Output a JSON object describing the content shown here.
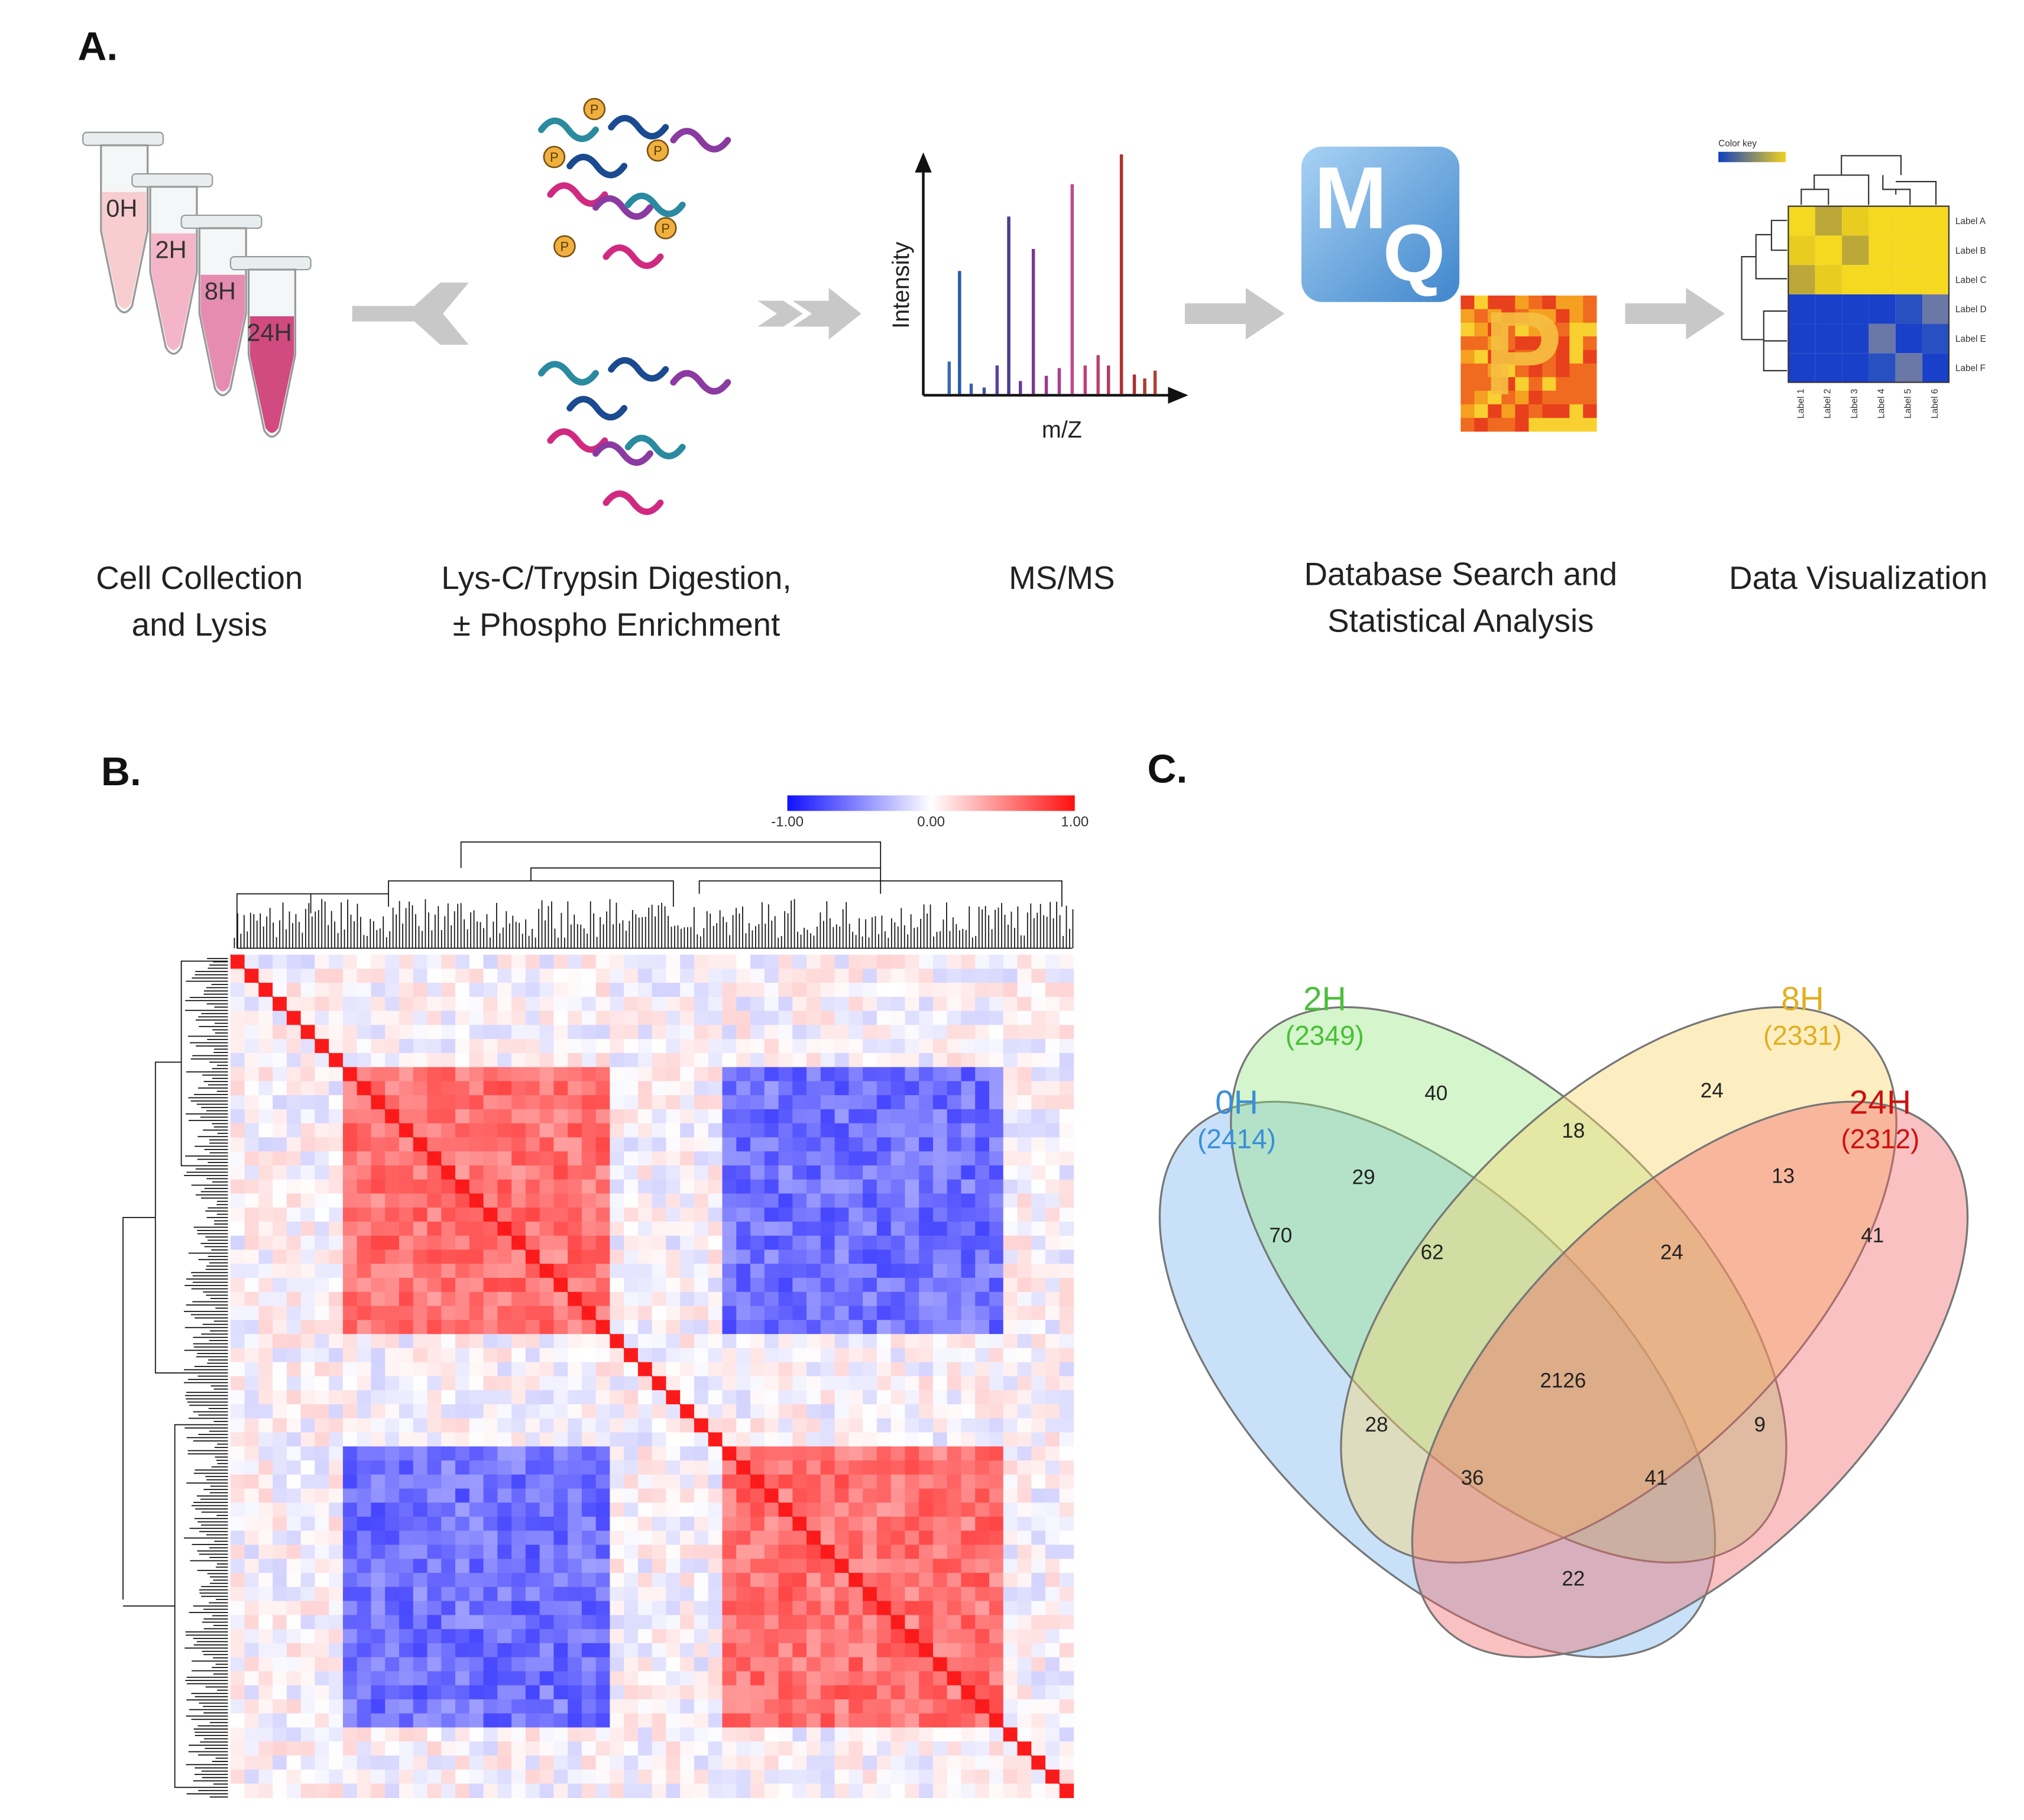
{
  "panel_a": {
    "label": "A.",
    "tubes": [
      "0H",
      "2H",
      "8H",
      "24H"
    ],
    "phospho_label": "P",
    "spectrum": {
      "y_label": "Intensity",
      "x_label": "m/Z"
    },
    "logo_mq": [
      "M",
      "Q"
    ],
    "logo_p": "P",
    "mini_heatmap": {
      "color_key": "Color key",
      "rows": [
        "Label A",
        "Label B",
        "Label C",
        "Label D",
        "Label E",
        "Label F"
      ],
      "cols": [
        "Label 1",
        "Label 2",
        "Label 3",
        "Label 4",
        "Label 5",
        "Label 6"
      ]
    },
    "steps": [
      [
        "Cell Collection",
        "and Lysis"
      ],
      [
        "Lys-C/Trypsin Digestion,",
        "± Phospho Enrichment"
      ],
      [
        "MS/MS"
      ],
      [
        "Database Search and",
        "Statistical Analysis"
      ],
      [
        "Data Visualization"
      ]
    ]
  },
  "panel_b": {
    "label": "B.",
    "colorbar": [
      "-1.00",
      "0.00",
      "1.00"
    ]
  },
  "panel_c": {
    "label": "C.",
    "sets": [
      {
        "name": "0H",
        "total": "(2414)"
      },
      {
        "name": "2H",
        "total": "(2349)"
      },
      {
        "name": "8H",
        "total": "(2331)"
      },
      {
        "name": "24H",
        "total": "(2312)"
      }
    ],
    "regions": [
      70,
      40,
      24,
      41,
      29,
      18,
      13,
      62,
      24,
      28,
      2126,
      9,
      36,
      41,
      22
    ]
  }
}
